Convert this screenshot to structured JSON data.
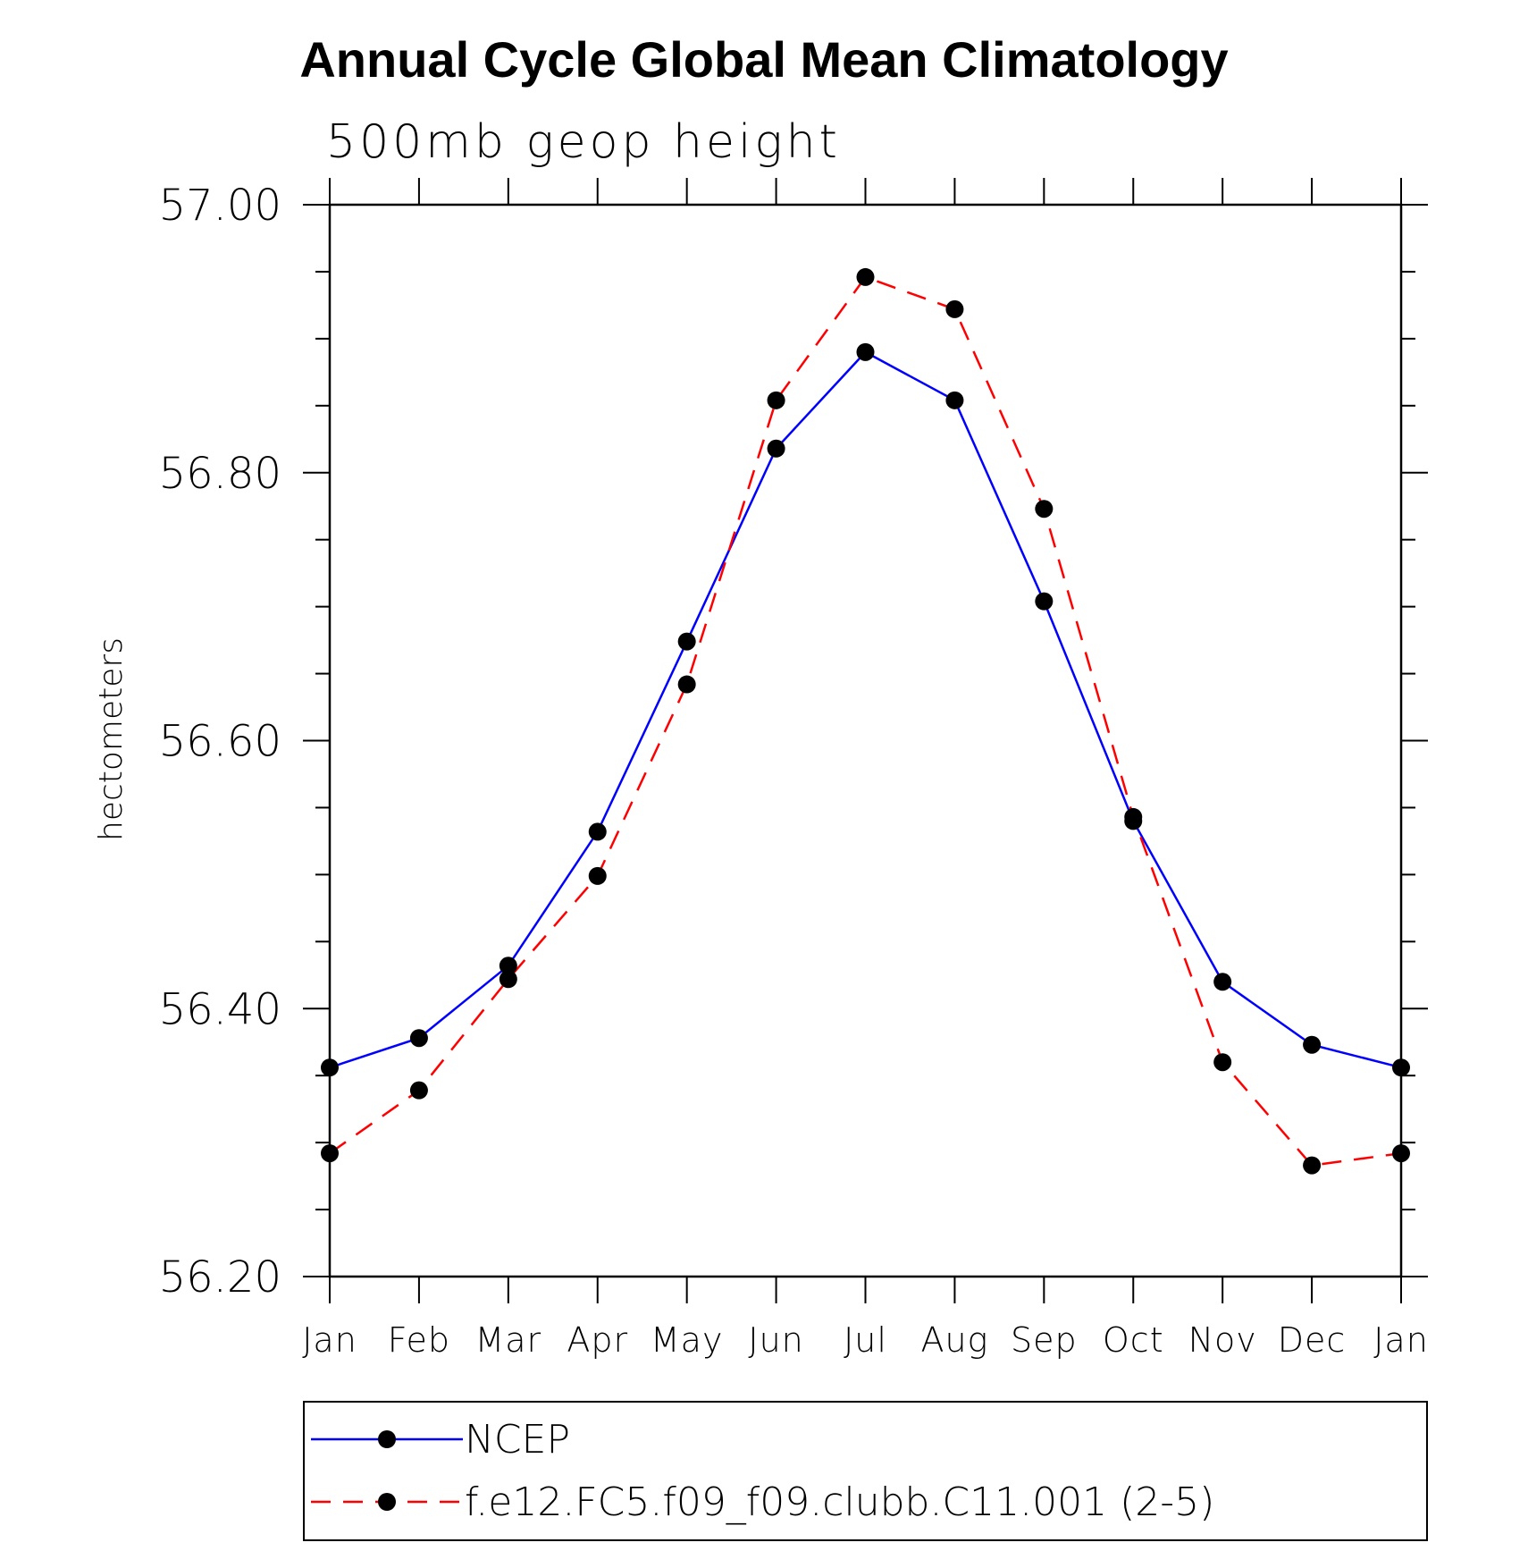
{
  "chart_data": {
    "type": "line",
    "title": "Annual Cycle Global Mean Climatology",
    "subtitle": "500mb geop height",
    "ylabel": "hectometers",
    "xlabel": "",
    "categories": [
      "Jan",
      "Feb",
      "Mar",
      "Apr",
      "May",
      "Jun",
      "Jul",
      "Aug",
      "Sep",
      "Oct",
      "Nov",
      "Dec",
      "Jan"
    ],
    "ylim": [
      56.2,
      57.0
    ],
    "yticks": [
      56.2,
      56.4,
      56.6,
      56.8,
      57.0
    ],
    "ytick_labels": [
      "56.20",
      "56.40",
      "56.60",
      "56.80",
      "57.00"
    ],
    "y_minor_step": 0.05,
    "grid": false,
    "legend_position": "bottom",
    "series": [
      {
        "name": "NCEP",
        "color": "#0000ff",
        "dash": "solid",
        "marker": "filled-circle",
        "values": [
          56.356,
          56.378,
          56.432,
          56.532,
          56.674,
          56.818,
          56.89,
          56.854,
          56.704,
          56.54,
          56.42,
          56.373,
          56.356
        ]
      },
      {
        "name": "f.e12.FC5.f09_f09.clubb.C11.001 (2-5)",
        "color": "#ff0000",
        "dash": "dashed",
        "marker": "filled-circle",
        "values": [
          56.292,
          56.339,
          56.422,
          56.499,
          56.642,
          56.854,
          56.946,
          56.922,
          56.773,
          56.543,
          56.36,
          56.283,
          56.292
        ]
      }
    ]
  }
}
